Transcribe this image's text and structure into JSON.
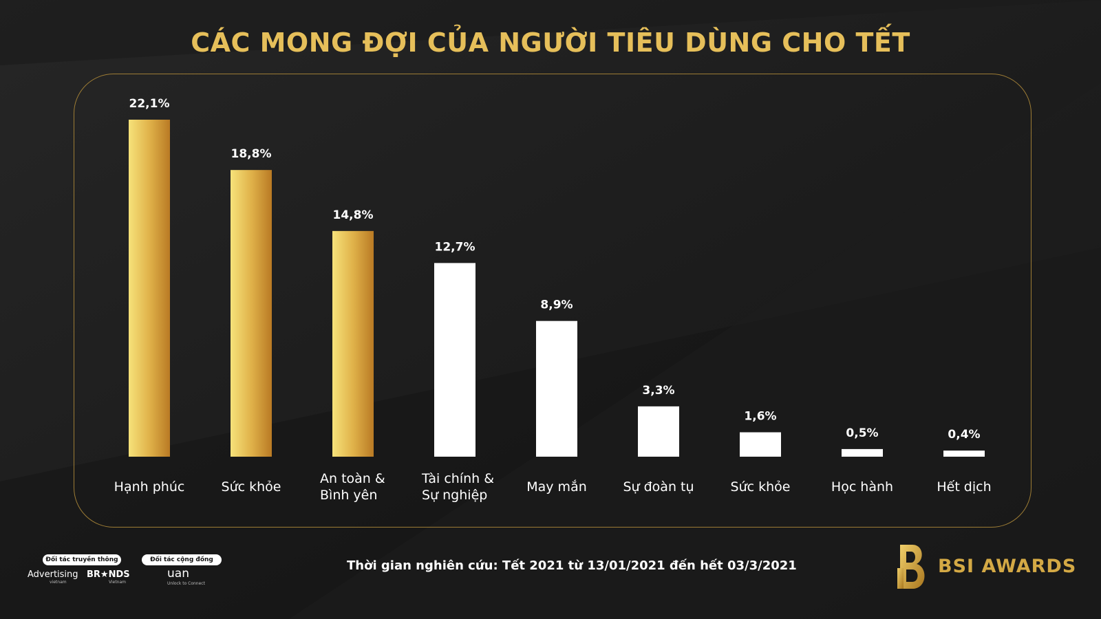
{
  "page": {
    "title": "CÁC MONG ĐỢI CỦA NGƯỜI TIÊU DÙNG CHO TẾT",
    "footer_note": "Thời gian nghiên cứu:  Tết 2021 từ 13/01/2021 đến hết 03/3/2021"
  },
  "partners": {
    "media_label": "Đối tác truyền thông",
    "community_label": "Đối tác cộng đồng",
    "logos": [
      {
        "text": "Advertising",
        "sub": "vietnam"
      },
      {
        "text": "BR★NDS",
        "sub": "Vietnam"
      },
      {
        "text": "uan",
        "sub": "Unlock to Connect"
      }
    ]
  },
  "brand": {
    "name": "BSI AWARDS"
  },
  "colors": {
    "gold_light": "#f6e27a",
    "gold_mid": "#e0b24a",
    "gold_dark": "#b97a24",
    "white_bar": "#ffffff",
    "title_gold": "#e6bf5a",
    "frame_border": "#9e7d35",
    "background": "#1c1c1c"
  },
  "chart_data": {
    "type": "bar",
    "title": "CÁC MONG ĐỢI CỦA NGƯỜI TIÊU DÙNG CHO TẾT",
    "categories": [
      [
        "Hạnh phúc"
      ],
      [
        "Sức khỏe"
      ],
      [
        "An toàn &",
        "Bình yên"
      ],
      [
        "Tài chính &",
        "Sự nghiệp"
      ],
      [
        "May mắn"
      ],
      [
        "Sự đoàn tụ"
      ],
      [
        "Sức khỏe"
      ],
      [
        "Học hành"
      ],
      [
        "Hết dịch"
      ]
    ],
    "values": [
      22.1,
      18.8,
      14.8,
      12.7,
      8.9,
      3.3,
      1.6,
      0.5,
      0.4
    ],
    "value_labels": [
      "22,1%",
      "18,8%",
      "14,8%",
      "12,7%",
      "8,9%",
      "3,3%",
      "1,6%",
      "0,5%",
      "0,4%"
    ],
    "highlight_style": [
      "gold",
      "gold",
      "gold",
      "white",
      "white",
      "white",
      "white",
      "white",
      "white"
    ],
    "unit": "%",
    "ylim": [
      0,
      22.1
    ],
    "grid": false,
    "legend": "none"
  }
}
